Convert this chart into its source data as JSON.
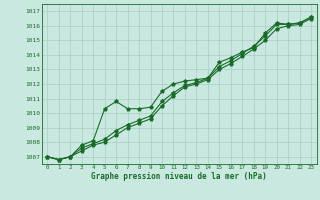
{
  "title": "Graphe pression niveau de la mer (hPa)",
  "bg_color": "#c8e8e0",
  "grid_color": "#a8ccc4",
  "line_color": "#1a6b2a",
  "xlim": [
    -0.5,
    23.5
  ],
  "ylim": [
    1006.5,
    1017.5
  ],
  "xticks": [
    0,
    1,
    2,
    3,
    4,
    5,
    6,
    7,
    8,
    9,
    10,
    11,
    12,
    13,
    14,
    15,
    16,
    17,
    18,
    19,
    20,
    21,
    22,
    23
  ],
  "yticks": [
    1007,
    1008,
    1009,
    1010,
    1011,
    1012,
    1013,
    1014,
    1015,
    1016,
    1017
  ],
  "line1_x": [
    0,
    1,
    2,
    3,
    4,
    5,
    6,
    7,
    8,
    9,
    10,
    11,
    12,
    13,
    14,
    15,
    16,
    17,
    18,
    19,
    20,
    21,
    22,
    23
  ],
  "line1_y": [
    1007.0,
    1006.8,
    1007.0,
    1007.8,
    1008.1,
    1010.3,
    1010.8,
    1010.3,
    1010.3,
    1010.4,
    1011.5,
    1012.0,
    1012.2,
    1012.3,
    1012.4,
    1013.5,
    1013.8,
    1014.2,
    1014.5,
    1015.5,
    1016.2,
    1016.1,
    1016.2,
    1016.6
  ],
  "line2_x": [
    0,
    1,
    2,
    3,
    4,
    5,
    6,
    7,
    8,
    9,
    10,
    11,
    12,
    13,
    14,
    15,
    16,
    17,
    18,
    19,
    20,
    21,
    22,
    23
  ],
  "line2_y": [
    1007.0,
    1006.8,
    1007.0,
    1007.6,
    1007.9,
    1008.2,
    1008.8,
    1009.2,
    1009.5,
    1009.8,
    1010.8,
    1011.4,
    1011.9,
    1012.1,
    1012.4,
    1013.2,
    1013.6,
    1014.1,
    1014.6,
    1015.3,
    1016.1,
    1016.1,
    1016.2,
    1016.6
  ],
  "line3_x": [
    0,
    1,
    2,
    3,
    4,
    5,
    6,
    7,
    8,
    9,
    10,
    11,
    12,
    13,
    14,
    15,
    16,
    17,
    18,
    19,
    20,
    21,
    22,
    23
  ],
  "line3_y": [
    1007.0,
    1006.8,
    1007.0,
    1007.4,
    1007.8,
    1008.0,
    1008.5,
    1009.0,
    1009.3,
    1009.6,
    1010.5,
    1011.2,
    1011.8,
    1012.0,
    1012.3,
    1013.0,
    1013.4,
    1013.9,
    1014.4,
    1015.0,
    1015.8,
    1016.0,
    1016.1,
    1016.5
  ]
}
